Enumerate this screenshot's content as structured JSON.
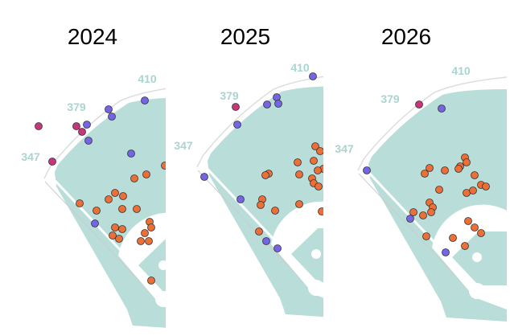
{
  "chart_data": [
    {
      "type": "scatter",
      "title": "2024",
      "field_labels": [
        "347",
        "379",
        "410"
      ],
      "xlim": [
        0,
        230
      ],
      "ylim": [
        0,
        418
      ],
      "series": [
        {
          "color": "#c8357a",
          "x": [
            48,
            95,
            102,
            65
          ],
          "y": [
            261,
            261,
            254,
            217
          ]
        },
        {
          "color": "#7564e6",
          "x": [
            180,
            135,
            139,
            108,
            110,
            163,
            118
          ],
          "y": [
            293,
            282,
            273,
            263,
            243,
            227,
            140
          ]
        },
        {
          "color": "#eb6f36",
          "x": [
            167,
            182,
            205,
            99,
            143,
            153,
            135,
            120,
            152,
            170,
            186,
            188,
            143,
            152,
            180,
            140,
            148,
            175,
            185,
            188
          ],
          "y": [
            196,
            201,
            212,
            165,
            178,
            174,
            170,
            156,
            158,
            158,
            142,
            135,
            135,
            133,
            128,
            125,
            121,
            118,
            118,
            69
          ]
        }
      ]
    },
    {
      "type": "scatter",
      "title": "2025",
      "field_labels": [
        "347",
        "379",
        "410"
      ],
      "xlim": [
        0,
        230
      ],
      "ylim": [
        0,
        418
      ],
      "series": [
        {
          "color": "#c8357a",
          "x": [
            103
          ],
          "y": [
            285
          ]
        },
        {
          "color": "#7564e6",
          "x": [
            199,
            154,
            142,
            156,
            105,
            64,
            109,
            141,
            155
          ],
          "y": [
            323,
            297,
            288,
            289,
            263,
            198,
            170,
            118,
            109
          ]
        },
        {
          "color": "#eb6f36",
          "x": [
            202,
            208,
            180,
            200,
            212,
            205,
            144,
            140,
            182,
            198,
            200,
            206,
            136,
            134,
            152,
            182,
            210,
            132
          ],
          "y": [
            236,
            230,
            216,
            218,
            208,
            206,
            202,
            200,
            201,
            196,
            190,
            186,
            170,
            163,
            156,
            164,
            155,
            130
          ]
        }
      ]
    },
    {
      "type": "scatter",
      "title": "2026",
      "field_labels": [
        "347",
        "379",
        "410"
      ],
      "xlim": [
        0,
        230
      ],
      "ylim": [
        0,
        418
      ],
      "series": [
        {
          "color": "#c8357a",
          "x": [
            131
          ],
          "y": [
            288
          ]
        },
        {
          "color": "#7564e6",
          "x": [
            159,
            66,
            120,
            164
          ],
          "y": [
            283,
            206,
            146,
            104
          ]
        },
        {
          "color": "#eb6f36",
          "x": [
            188,
            190,
            182,
            180,
            138,
            144,
            163,
            200,
            208,
            214,
            156,
            190,
            198,
            144,
            148,
            124,
            146,
            136,
            192,
            200,
            208,
            173,
            140,
            188
          ],
          "y": [
            222,
            216,
            211,
            208,
            202,
            209,
            206,
            200,
            188,
            186,
            182,
            178,
            181,
            166,
            160,
            154,
            154,
            150,
            143,
            135,
            128,
            122,
            124,
            112
          ]
        }
      ]
    }
  ]
}
